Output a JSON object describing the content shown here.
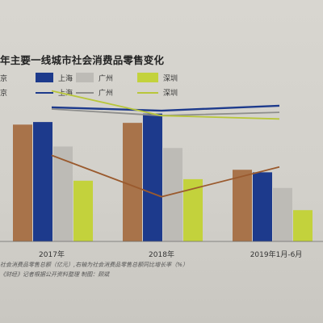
{
  "title": "年主要一线城市社会消费品零售变化",
  "legend": {
    "bars": [
      "京",
      "上海",
      "广州",
      "深圳"
    ],
    "lines": [
      "京",
      "上海",
      "广州",
      "深圳"
    ]
  },
  "colors": {
    "beijing_bar": "#a8734a",
    "shanghai_bar": "#1d3a8c",
    "guangzhou_bar": "#bdbbb6",
    "shenzhen_bar": "#c3d23c",
    "beijing_line": "#9a5a2e",
    "shanghai_line": "#1d3a8c",
    "guangzhou_line": "#8e8e8c",
    "shenzhen_line": "#b8c63a"
  },
  "chart_data": {
    "type": "bar",
    "categories": [
      "2017年",
      "2018年",
      "2019年1月-6月"
    ],
    "series": [
      {
        "name": "京",
        "values": [
          11575,
          11748,
          7100
        ]
      },
      {
        "name": "上海",
        "values": [
          11830,
          12669,
          6850
        ]
      },
      {
        "name": "广州",
        "values": [
          9403,
          9256,
          5300
        ]
      },
      {
        "name": "深圳",
        "values": [
          6016,
          6169,
          3100
        ]
      }
    ],
    "line_series": [
      {
        "name": "京",
        "values": [
          5.2,
          2.7,
          4.5
        ]
      },
      {
        "name": "上海",
        "values": [
          8.1,
          7.9,
          8.2
        ]
      },
      {
        "name": "广州",
        "values": [
          8.0,
          7.6,
          7.8
        ]
      },
      {
        "name": "深圳",
        "values": [
          9.1,
          7.6,
          7.4
        ]
      }
    ],
    "ylim_left": [
      0,
      14000
    ],
    "ylim_right": [
      0,
      10
    ],
    "grid": false,
    "legend_position": "top-left"
  },
  "footnote_lines": [
    "社会消费品零售总额（亿元）,右轴为社会消费品零售总额同比增长率（%）",
    "《财经》记者根据公开资料整理    制图：顾斌"
  ]
}
